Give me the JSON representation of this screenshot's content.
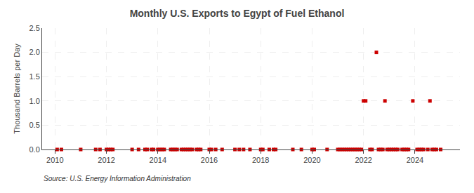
{
  "chart_data": {
    "type": "scatter",
    "title": "Monthly U.S. Exports to Egypt of Fuel Ethanol",
    "ylabel": "Thousand Barrels per Day",
    "annotations": [
      "Source: U.S. Energy Information Administration"
    ],
    "color": "#cc0000",
    "marker": "square",
    "grid": true,
    "xlim": [
      2009.5,
      2025.75
    ],
    "xticks": [
      2010,
      2012,
      2014,
      2016,
      2018,
      2020,
      2022,
      2024
    ],
    "ylim": [
      0,
      2.5
    ],
    "yticks": [
      {
        "value": 0.0,
        "label": "0.0"
      },
      0.5,
      {
        "value": 1.0,
        "label": "1.0"
      },
      1.5,
      {
        "value": 2.0,
        "label": "2.0"
      },
      2.5
    ],
    "x": [
      2010.083,
      2010.25,
      2011.0,
      2011.583,
      2011.75,
      2012.0,
      2012.083,
      2012.167,
      2012.25,
      2013.0,
      2013.25,
      2013.5,
      2013.583,
      2013.75,
      2013.833,
      2014.0,
      2014.083,
      2014.167,
      2014.25,
      2014.5,
      2014.583,
      2014.667,
      2014.75,
      2014.917,
      2015.0,
      2015.083,
      2015.167,
      2015.25,
      2015.333,
      2015.5,
      2015.583,
      2015.667,
      2016.0,
      2016.083,
      2016.25,
      2016.5,
      2017.0,
      2017.167,
      2017.333,
      2017.583,
      2018.0,
      2018.083,
      2018.333,
      2018.5,
      2018.583,
      2019.25,
      2019.583,
      2020.0,
      2020.083,
      2020.583,
      2021.0,
      2021.083,
      2021.167,
      2021.25,
      2021.333,
      2021.417,
      2021.5,
      2021.583,
      2021.667,
      2021.75,
      2021.833,
      2021.917,
      2022.0,
      2022.083,
      2022.25,
      2022.333,
      2022.5,
      2022.583,
      2022.667,
      2022.75,
      2022.833,
      2022.917,
      2023.0,
      2023.083,
      2023.167,
      2023.25,
      2023.333,
      2023.5,
      2023.583,
      2023.667,
      2023.75,
      2023.917,
      2024.083,
      2024.167,
      2024.25,
      2024.333,
      2024.5,
      2024.583,
      2024.667,
      2024.75,
      2024.833,
      2025.0
    ],
    "values": [
      0.0,
      0.0,
      0.0,
      0.0,
      0.0,
      0.0,
      0.0,
      0.0,
      0.0,
      0.0,
      0.0,
      0.0,
      0.0,
      0.0,
      0.0,
      0.0,
      0.0,
      0.0,
      0.0,
      0.0,
      0.0,
      0.0,
      0.0,
      0.0,
      0.0,
      0.0,
      0.0,
      0.0,
      0.0,
      0.0,
      0.0,
      0.0,
      0.0,
      0.0,
      0.0,
      0.0,
      0.0,
      0.0,
      0.0,
      0.0,
      0.0,
      0.0,
      0.0,
      0.0,
      0.0,
      0.0,
      0.0,
      0.0,
      0.0,
      0.0,
      0.0,
      0.0,
      0.0,
      0.0,
      0.0,
      0.0,
      0.0,
      0.0,
      0.0,
      0.0,
      0.0,
      0.0,
      1.0,
      1.0,
      0.0,
      0.0,
      2.0,
      0.0,
      0.0,
      0.0,
      1.0,
      0.0,
      0.0,
      0.0,
      0.0,
      0.0,
      0.0,
      0.0,
      0.0,
      0.0,
      0.0,
      1.0,
      0.0,
      0.0,
      0.0,
      0.0,
      0.0,
      1.0,
      0.0,
      0.0,
      0.0,
      0.0
    ]
  }
}
